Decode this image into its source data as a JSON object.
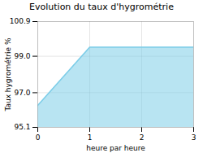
{
  "chart_data": {
    "type": "area",
    "title": "Evolution du taux d'hygrométrie",
    "xlabel": "heure par heure",
    "ylabel": "Taux hygrométrie %",
    "x": [
      0,
      1,
      3
    ],
    "values": [
      96.3,
      99.5,
      99.5
    ],
    "color": "#7dcde8",
    "xlim": [
      0,
      3
    ],
    "xticks": [
      0,
      1,
      2,
      3
    ],
    "ylim": [
      95.1,
      100.9
    ],
    "yticks": [
      95.1,
      {
        "value": 97.0,
        "label": "97.0"
      },
      {
        "value": 99.0,
        "label": "99.0"
      },
      100.9
    ],
    "grid": true
  }
}
